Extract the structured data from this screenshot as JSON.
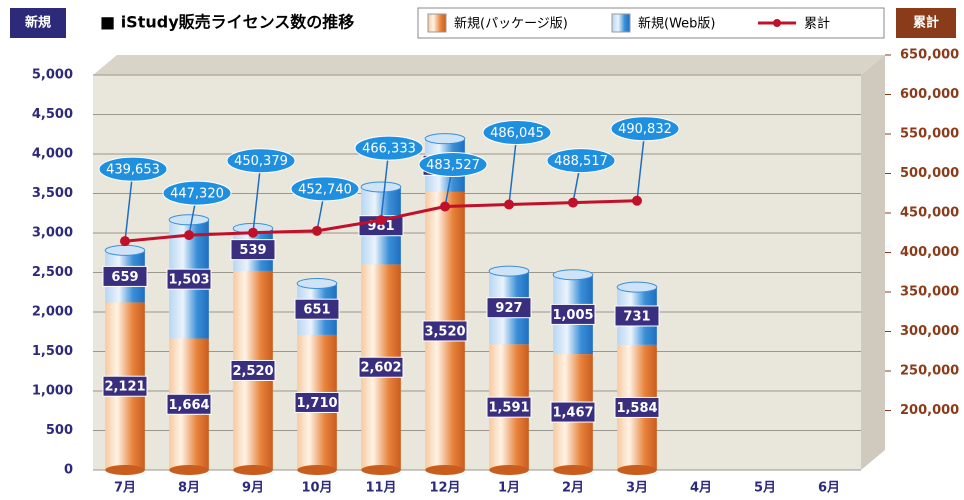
{
  "chart_data": {
    "type": "bar",
    "title": "■ iStudy販売ライセンス数の推移",
    "y_label": "新規",
    "y2_label": "累計",
    "categories": [
      "7月",
      "8月",
      "9月",
      "10月",
      "11月",
      "12月",
      "1月",
      "2月",
      "3月",
      "4月",
      "5月",
      "6月"
    ],
    "series": [
      {
        "name": "新規(パッケージ版)",
        "color": "#e8823a",
        "stack": true,
        "values": [
          2121,
          1664,
          2520,
          1710,
          2602,
          3520,
          1591,
          1467,
          1584,
          null,
          null,
          null
        ],
        "value_labels": [
          "2,121",
          "1,664",
          "2,520",
          "1,710",
          "2,602",
          "3,520",
          "1,591",
          "1,467",
          "1,584",
          null,
          null,
          null
        ]
      },
      {
        "name": "新規(Web版)",
        "color": "#3a8fd8",
        "stack": true,
        "values": [
          659,
          1503,
          539,
          651,
          981,
          674,
          927,
          1005,
          731,
          null,
          null,
          null
        ],
        "value_labels": [
          "659",
          "1,503",
          "539",
          "651",
          "981",
          "674",
          "927",
          "1,005",
          "731",
          null,
          null,
          null
        ]
      },
      {
        "name": "累計",
        "color": "#c0102a",
        "type": "line",
        "axis": "y2",
        "values": [
          439653,
          447320,
          450379,
          452740,
          466333,
          483527,
          486045,
          488517,
          490832,
          null,
          null,
          null
        ],
        "value_labels": [
          "439,653",
          "447,320",
          "450,379",
          "452,740",
          "466,333",
          "483,527",
          "486,045",
          "488,517",
          "490,832",
          null,
          null,
          null
        ]
      }
    ],
    "ylim": [
      0,
      5000
    ],
    "yticks": [
      0,
      500,
      {
        "value": 1000,
        "label": "1,000"
      },
      {
        "value": 1500,
        "label": "1,500"
      },
      {
        "value": 2000,
        "label": "2,000"
      },
      {
        "value": 2500,
        "label": "2,500"
      },
      {
        "value": 3000,
        "label": "3,000"
      },
      {
        "value": 3500,
        "label": "3,500"
      },
      {
        "value": 4000,
        "label": "4,000"
      },
      {
        "value": 4500,
        "label": "4,500"
      },
      {
        "value": 5000,
        "label": "5,000"
      }
    ],
    "y2lim": [
      150000,
      650000
    ],
    "y2ticks": [
      {
        "value": 200000,
        "label": "200,000"
      },
      {
        "value": 250000,
        "label": "250,000"
      },
      {
        "value": 300000,
        "label": "300,000"
      },
      {
        "value": 350000,
        "label": "350,000"
      },
      {
        "value": 400000,
        "label": "400,000"
      },
      {
        "value": 450000,
        "label": "450,000"
      },
      {
        "value": 500000,
        "label": "500,000"
      },
      {
        "value": 550000,
        "label": "550,000"
      },
      {
        "value": 600000,
        "label": "600,000"
      },
      {
        "value": 650000,
        "label": "650,000"
      }
    ],
    "grid": true
  }
}
